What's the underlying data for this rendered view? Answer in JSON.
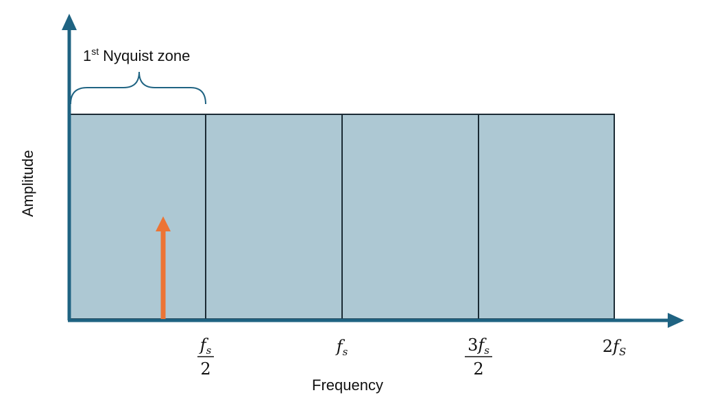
{
  "zone_label": {
    "number": "1",
    "suffix": "st",
    "text": "Nyquist zone"
  },
  "y_axis_label": "Amplitude",
  "x_axis_label": "Frequency",
  "ticks": [
    {
      "numerator": {
        "symbol": "f",
        "subscript": "s"
      },
      "denominator": "2"
    },
    {
      "symbol": "f",
      "subscript": "s"
    },
    {
      "numerator": {
        "coefficient": "3",
        "symbol": "f",
        "subscript": "s"
      },
      "denominator": "2"
    },
    {
      "coefficient": "2",
      "symbol": "f",
      "subscript": "S"
    }
  ]
}
